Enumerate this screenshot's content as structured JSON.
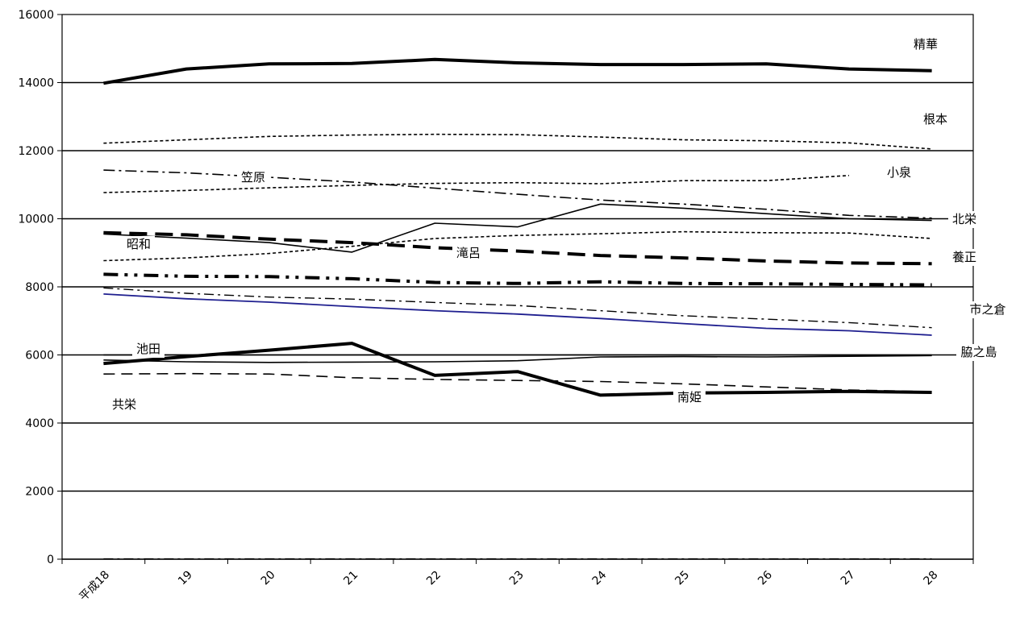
{
  "chart_data": {
    "type": "line",
    "categories": [
      "平成18",
      "19",
      "20",
      "21",
      "22",
      "23",
      "24",
      "25",
      "26",
      "27",
      "28"
    ],
    "ylim": [
      0,
      16000
    ],
    "yticks": [
      0,
      2000,
      4000,
      6000,
      8000,
      10000,
      12000,
      14000,
      16000
    ],
    "grid": true,
    "series": [
      {
        "name": "精華",
        "style": "thick",
        "values": [
          13980,
          14400,
          14550,
          14560,
          14680,
          14580,
          14530,
          14530,
          14550,
          14400,
          14350
        ]
      },
      {
        "name": "根本",
        "style": "dotted",
        "values": [
          12220,
          12320,
          12420,
          12460,
          12480,
          12470,
          12400,
          12320,
          12290,
          12230,
          12050
        ]
      },
      {
        "name": "笠原",
        "style": "dashdot",
        "values": [
          11430,
          11350,
          11220,
          11080,
          10900,
          10720,
          10550,
          10430,
          10280,
          10100,
          10020
        ]
      },
      {
        "name": "小泉",
        "style": "dotted",
        "values": [
          10770,
          10830,
          10910,
          10980,
          11040,
          11060,
          11030,
          11120,
          11120,
          11270,
          null
        ]
      },
      {
        "name": "北栄",
        "style": "thin",
        "values": [
          9550,
          9430,
          9300,
          9020,
          9870,
          9760,
          10430,
          10310,
          10150,
          10000,
          9950
        ]
      },
      {
        "name": "昭和",
        "style": "dashed-thick",
        "values": [
          9590,
          9530,
          9400,
          9300,
          9150,
          9050,
          8920,
          8850,
          8760,
          8700,
          8680
        ]
      },
      {
        "name": "滝呂",
        "style": "dotted",
        "values": [
          8770,
          8850,
          8980,
          9190,
          9420,
          9510,
          9560,
          9620,
          9590,
          9580,
          9420
        ]
      },
      {
        "name": "養正",
        "style": "dashdotdot",
        "values": [
          8370,
          8310,
          8300,
          8240,
          8130,
          8100,
          8150,
          8100,
          8090,
          8070,
          8060
        ]
      },
      {
        "name": "市之倉",
        "style": "dashdot-thin",
        "values": [
          7970,
          7810,
          7700,
          7640,
          7540,
          7450,
          7300,
          7150,
          7050,
          6950,
          6800
        ]
      },
      {
        "name": "blue",
        "style": "blue",
        "values": [
          7790,
          7650,
          7550,
          7420,
          7300,
          7200,
          7070,
          6920,
          6780,
          6710,
          6580
        ]
      },
      {
        "name": "池田",
        "style": "thin",
        "values": [
          5850,
          5800,
          5780,
          5790,
          5800,
          5830,
          5940,
          5950,
          5940,
          5960,
          5980
        ]
      },
      {
        "name": "南姫",
        "style": "thick",
        "values": [
          5750,
          5950,
          6140,
          6340,
          5400,
          5510,
          4820,
          4880,
          4900,
          4930,
          4900
        ]
      },
      {
        "name": "共栄",
        "style": "dashed",
        "values": [
          5440,
          5450,
          5440,
          5330,
          5280,
          5250,
          5220,
          5150,
          5060,
          4970,
          4920
        ]
      },
      {
        "name": "脇之島",
        "style": "thin",
        "values": [
          6000,
          6000,
          6000,
          6000,
          6000,
          6000,
          6000,
          6000,
          6000,
          6000,
          6000
        ]
      },
      {
        "name": "baseline",
        "style": "dashdot-thin",
        "values": [
          10,
          10,
          10,
          10,
          10,
          10,
          10,
          10,
          10,
          10,
          10
        ]
      }
    ],
    "labels": [
      "精華",
      "根本",
      "笠原",
      "小泉",
      "北栄",
      "昭和",
      "滝呂",
      "養正",
      "市之倉",
      "池田",
      "脇之島",
      "南姫",
      "共栄"
    ]
  }
}
